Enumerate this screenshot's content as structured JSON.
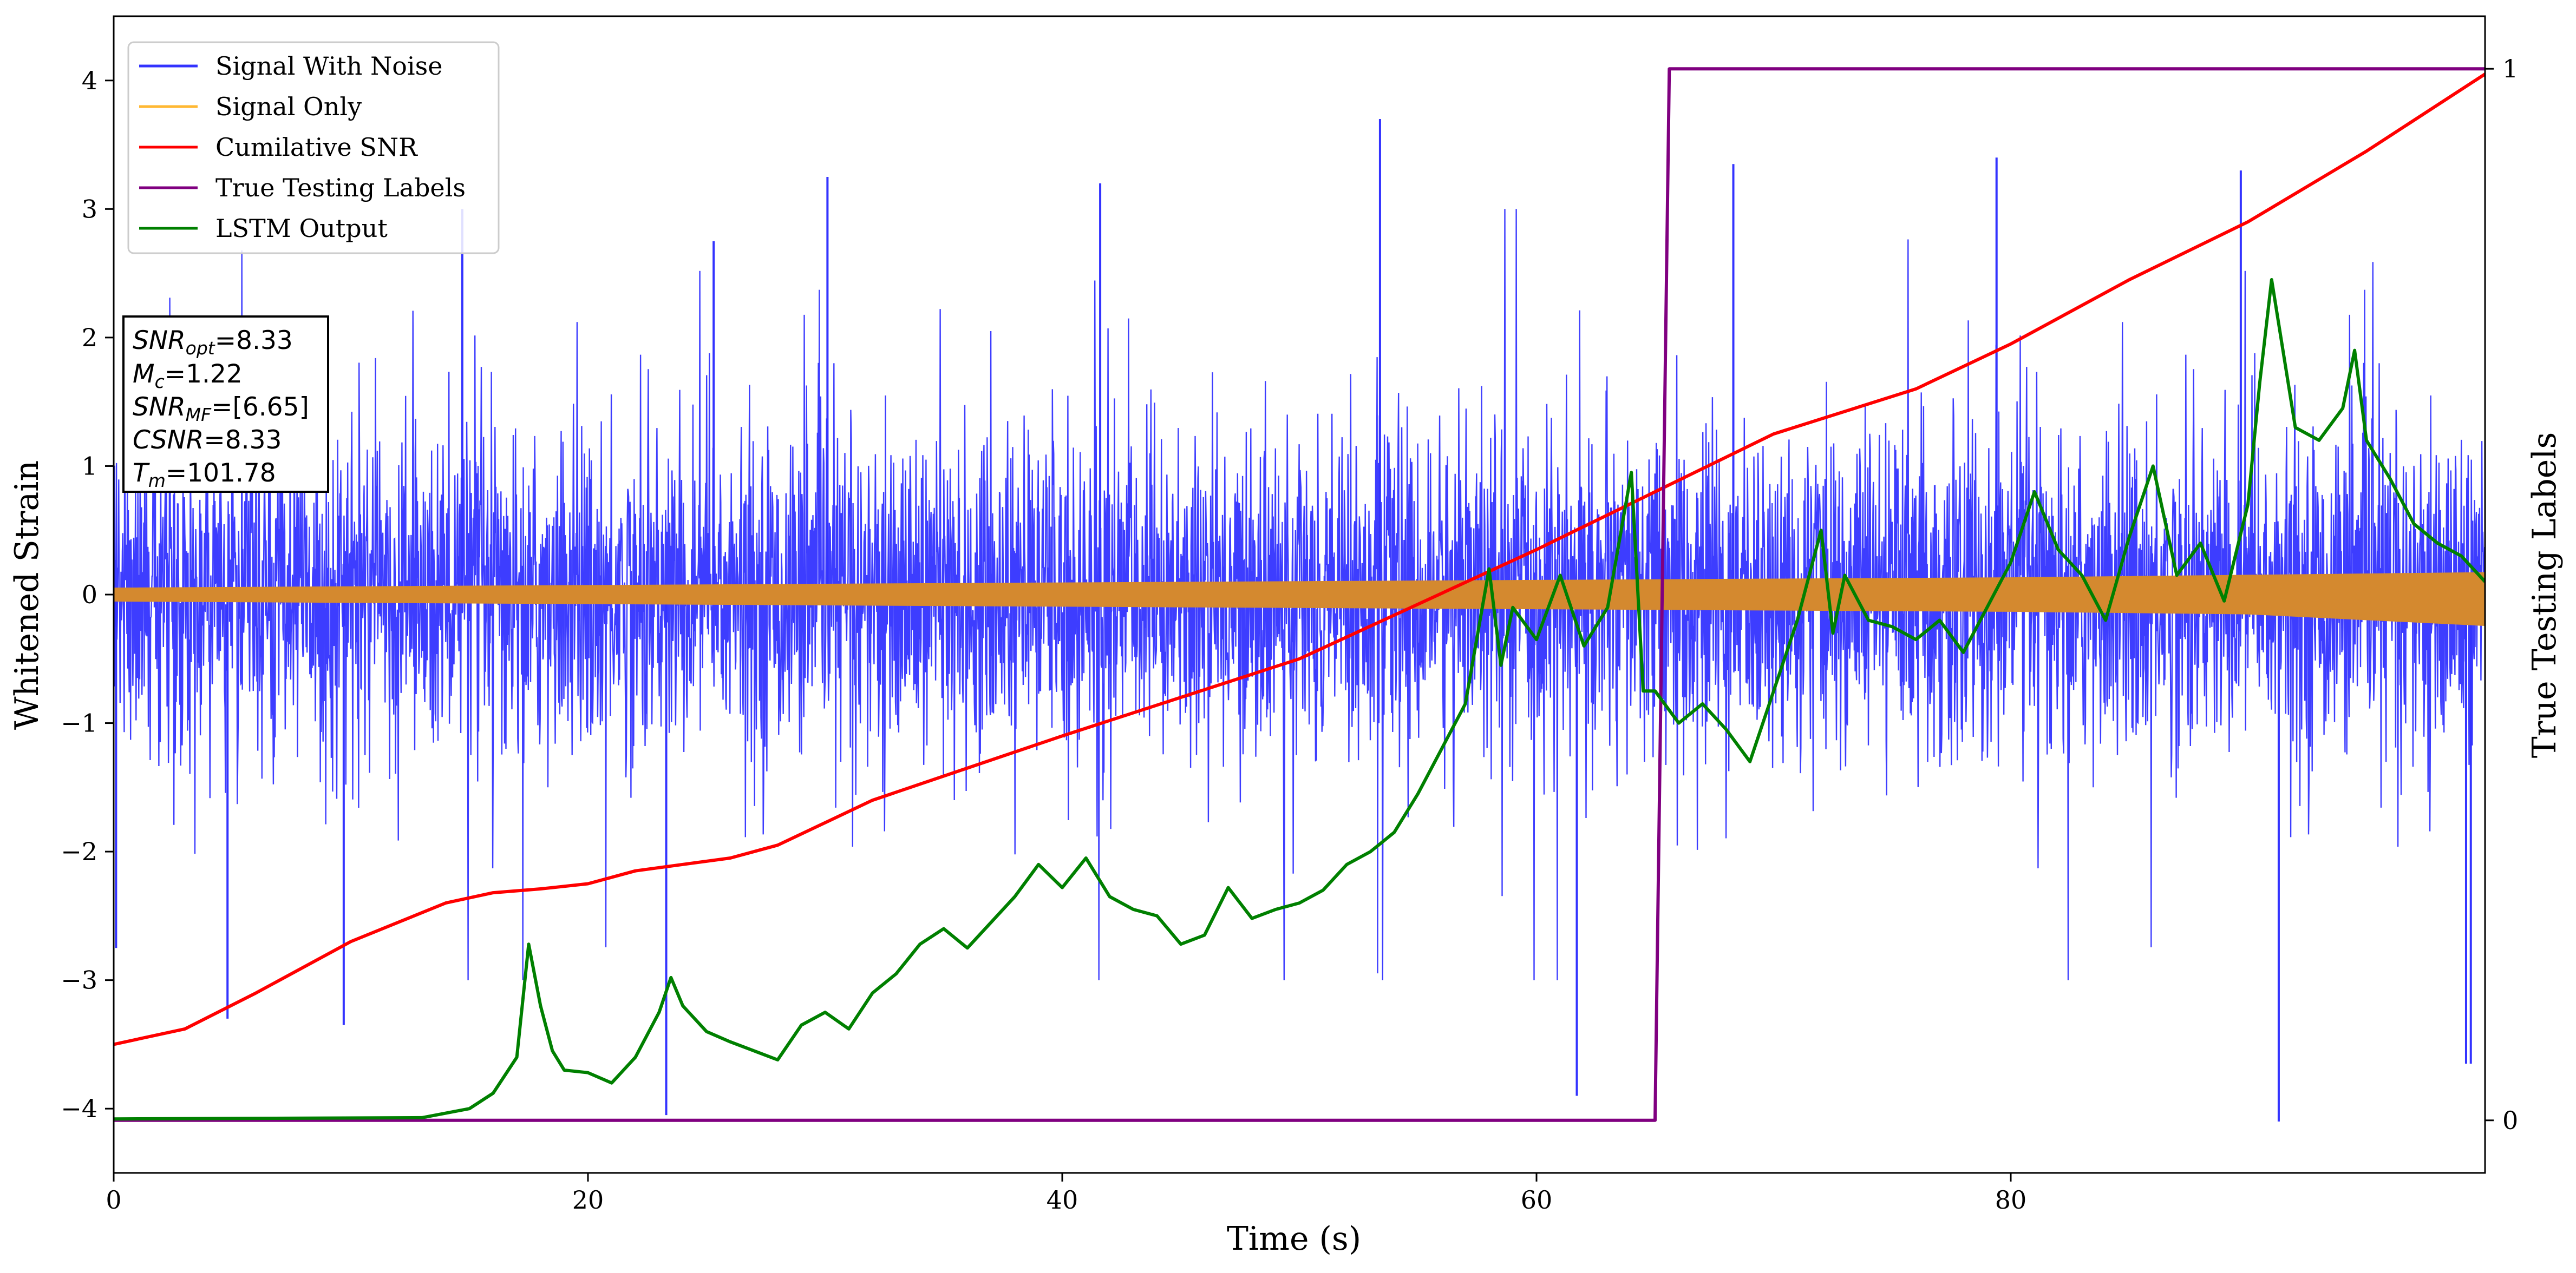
{
  "chart_data": {
    "type": "line",
    "xlabel": "Time (s)",
    "ylabel": "Whitened Strain",
    "y2label": "True Testing Labels",
    "xlim": [
      0,
      100
    ],
    "ylim": [
      -4.5,
      4.5
    ],
    "y2lim": [
      -0.05,
      1.05
    ],
    "xticks": [
      0,
      20,
      40,
      60,
      80
    ],
    "yticks": [
      -4,
      -3,
      -2,
      -1,
      0,
      1,
      2,
      3,
      4
    ],
    "y2ticks": [
      0,
      1
    ],
    "tick_labels": {
      "x": [
        "0",
        "20",
        "40",
        "60",
        "80"
      ],
      "y": [
        "−4",
        "−3",
        "−2",
        "−1",
        "0",
        "1",
        "2",
        "3",
        "4"
      ],
      "y2": [
        "0",
        "1"
      ]
    },
    "legend": {
      "placement": "upper-left",
      "entries": [
        {
          "label": "Signal With Noise",
          "color": "#3333ff"
        },
        {
          "label": "Signal Only",
          "color": "#ffb833"
        },
        {
          "label": "Cumilative SNR",
          "color": "#ff0000"
        },
        {
          "label": "True Testing Labels",
          "color": "#800080"
        },
        {
          "label": "LSTM Output",
          "color": "#008000"
        }
      ]
    },
    "info_box": {
      "snr_opt": {
        "sym": "SNR",
        "sub": "opt",
        "value": "=8.33"
      },
      "mc": {
        "sym": "M",
        "sub": "c",
        "value": "=1.22"
      },
      "snr_mf": {
        "sym": "SNR",
        "sub": "MF",
        "value": "=[6.65]"
      },
      "csnr": {
        "sym": "CSNR",
        "value": "=8.33"
      },
      "tm": {
        "sym": "T",
        "sub": "m",
        "value": "=101.78"
      }
    },
    "series": [
      {
        "name": "Signal With Noise",
        "color": "#3333ff",
        "note": "dense noise band",
        "envelope_y": [
          -1.3,
          1.3
        ],
        "peak_events": [
          {
            "x": 0.1,
            "y": -2.75
          },
          {
            "x": 4.8,
            "y": -3.3
          },
          {
            "x": 9.7,
            "y": -3.35
          },
          {
            "x": 14.7,
            "y": 3.0
          },
          {
            "x": 23.3,
            "y": -4.05
          },
          {
            "x": 25.3,
            "y": 2.75
          },
          {
            "x": 30.1,
            "y": 3.25
          },
          {
            "x": 41.6,
            "y": 3.2
          },
          {
            "x": 53.4,
            "y": 3.7
          },
          {
            "x": 61.7,
            "y": -3.9
          },
          {
            "x": 68.3,
            "y": 3.35
          },
          {
            "x": 79.4,
            "y": 3.4
          },
          {
            "x": 89.7,
            "y": 3.3
          },
          {
            "x": 91.3,
            "y": -4.1
          },
          {
            "x": 99.2,
            "y": -3.65
          },
          {
            "x": 99.4,
            "y": -3.65
          }
        ]
      },
      {
        "name": "Signal Only",
        "color": "#d4892f",
        "x": [
          0,
          10,
          20,
          30,
          40,
          50,
          60,
          70,
          80,
          90,
          100
        ],
        "upper": [
          0.05,
          0.06,
          0.07,
          0.08,
          0.09,
          0.1,
          0.11,
          0.12,
          0.13,
          0.15,
          0.17
        ],
        "lower": [
          -0.05,
          -0.06,
          -0.07,
          -0.08,
          -0.09,
          -0.1,
          -0.11,
          -0.12,
          -0.13,
          -0.15,
          -0.24
        ]
      },
      {
        "name": "Cumilative SNR",
        "color": "#ff0000",
        "x": [
          0,
          3,
          6,
          10,
          14,
          16,
          18,
          20,
          22,
          26,
          28,
          32,
          40,
          50,
          60,
          70,
          76,
          80,
          85,
          90,
          95,
          100
        ],
        "y": [
          -3.5,
          -3.38,
          -3.1,
          -2.7,
          -2.4,
          -2.32,
          -2.29,
          -2.25,
          -2.15,
          -2.05,
          -1.95,
          -1.6,
          -1.1,
          -0.5,
          0.35,
          1.25,
          1.6,
          1.95,
          2.45,
          2.9,
          3.45,
          4.05
        ]
      },
      {
        "name": "True Testing Labels",
        "color": "#800080",
        "axis": "y2",
        "x": [
          0,
          65,
          65.6,
          100
        ],
        "y": [
          0,
          0,
          1,
          1
        ]
      },
      {
        "name": "LSTM Output",
        "color": "#008000",
        "x": [
          0,
          13,
          15,
          16,
          17,
          17.5,
          18.0,
          18.5,
          19.0,
          20,
          21,
          22,
          23,
          23.5,
          24,
          25,
          26,
          27,
          28,
          29,
          30,
          31,
          32,
          33,
          34,
          35,
          36,
          37,
          38,
          39,
          40,
          41,
          42,
          43,
          44,
          45,
          46,
          47,
          48,
          49,
          50,
          51,
          52,
          53,
          54,
          55,
          56,
          57,
          58,
          58.5,
          59,
          60,
          61,
          62,
          63,
          64,
          64.5,
          65,
          66,
          67,
          68,
          69,
          70,
          71,
          72,
          72.5,
          73,
          74,
          75,
          76,
          77,
          78,
          79,
          80,
          81,
          82,
          83,
          84,
          85,
          86,
          87,
          88,
          89,
          90,
          90.5,
          91,
          92,
          93,
          94,
          94.5,
          95,
          96,
          97,
          98,
          99,
          100
        ],
        "y": [
          -4.08,
          -4.07,
          -4.0,
          -3.88,
          -3.6,
          -2.72,
          -3.2,
          -3.55,
          -3.7,
          -3.72,
          -3.8,
          -3.6,
          -3.25,
          -2.98,
          -3.2,
          -3.4,
          -3.48,
          -3.55,
          -3.62,
          -3.35,
          -3.25,
          -3.38,
          -3.1,
          -2.95,
          -2.72,
          -2.6,
          -2.75,
          -2.55,
          -2.35,
          -2.1,
          -2.28,
          -2.05,
          -2.35,
          -2.45,
          -2.5,
          -2.72,
          -2.65,
          -2.28,
          -2.52,
          -2.45,
          -2.4,
          -2.3,
          -2.1,
          -2.0,
          -1.85,
          -1.55,
          -1.2,
          -0.85,
          0.2,
          -0.55,
          -0.1,
          -0.35,
          0.15,
          -0.4,
          -0.1,
          0.95,
          -0.75,
          -0.75,
          -1.0,
          -0.85,
          -1.05,
          -1.3,
          -0.75,
          -0.2,
          0.5,
          -0.3,
          0.15,
          -0.2,
          -0.25,
          -0.35,
          -0.2,
          -0.45,
          -0.1,
          0.25,
          0.8,
          0.35,
          0.15,
          -0.2,
          0.45,
          1.0,
          0.15,
          0.4,
          -0.05,
          0.7,
          1.65,
          2.45,
          1.3,
          1.2,
          1.45,
          1.9,
          1.2,
          0.9,
          0.55,
          0.4,
          0.3,
          0.1
        ]
      }
    ]
  }
}
